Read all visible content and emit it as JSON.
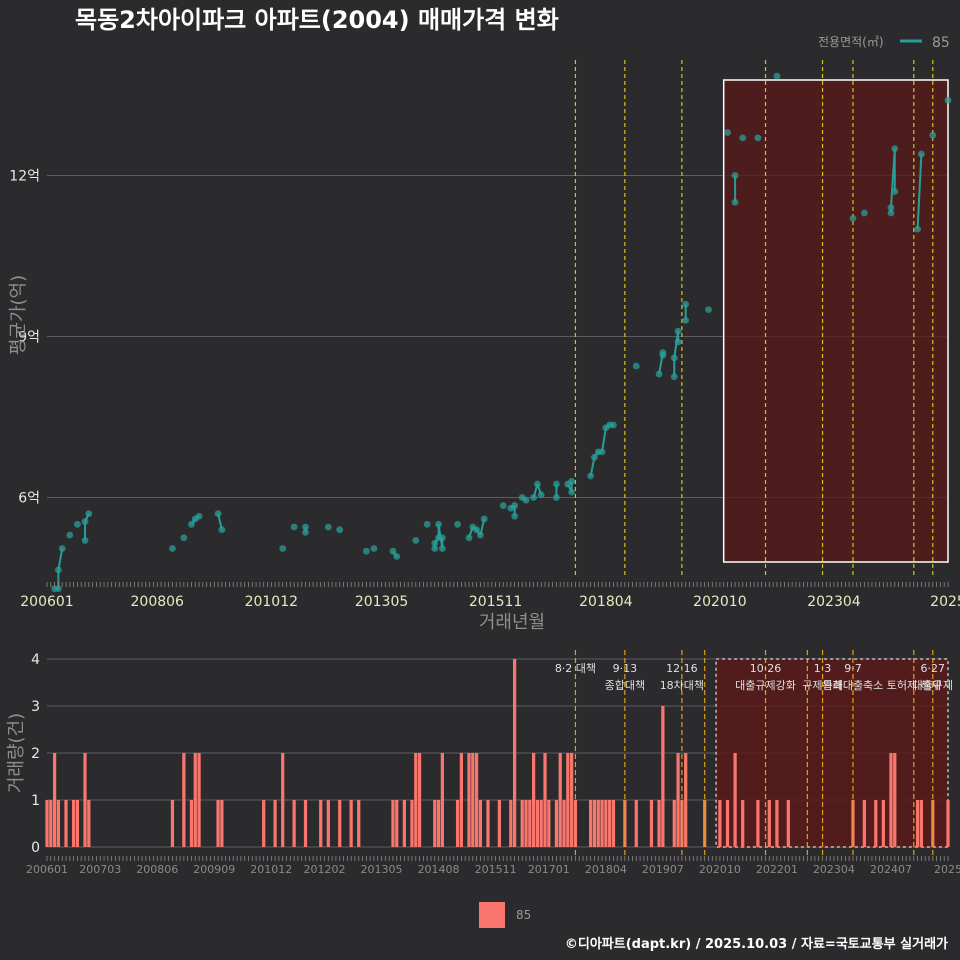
{
  "title": "목동2차아이파크 아파트(2004) 매매가격 변화",
  "caption": "©디아파트(dapt.kr) / 2025.10.03 / 자료=국토교통부 실거래가",
  "colors": {
    "line": "#2a9d98",
    "bar": "#f8766d",
    "vline": "#d4c415",
    "highlight": "#5a1a1a"
  },
  "chart_data": [
    {
      "type": "line",
      "title": "목동2차아이파크 아파트(2004) 매매가격 변화",
      "xlabel": "거래년월",
      "ylabel": "평균가(억)",
      "x_tick_labels": [
        "200601",
        "200806",
        "201012",
        "201305",
        "201511",
        "201804",
        "202010",
        "202304",
        "2025"
      ],
      "y_tick_labels": [
        "6억",
        "9억",
        "12억"
      ],
      "y_ticks": [
        6,
        9,
        12
      ],
      "ylim": [
        4.5,
        14.3
      ],
      "x_range": [
        "2006-01",
        "2025-10"
      ],
      "legend": {
        "title": "전용면적(㎡)",
        "entries": [
          "85"
        ],
        "position": "top-right"
      },
      "highlight_region": {
        "x_start": "2020-11",
        "x_end": "2025-10"
      },
      "vertical_lines": [
        "2017-08",
        "2018-09",
        "2019-12",
        "2021-10",
        "2023-01",
        "2023-09",
        "2025-01",
        "2025-06"
      ],
      "series": [
        {
          "name": "85",
          "points": [
            [
              "2006-03",
              4.3
            ],
            [
              "2006-04",
              4.3
            ],
            [
              "2006-04",
              4.65
            ],
            [
              "2006-05",
              5.05
            ],
            [
              "2006-07",
              5.3
            ],
            [
              "2006-09",
              5.5
            ],
            [
              "2006-11",
              5.2
            ],
            [
              "2006-11",
              5.55
            ],
            [
              "2006-12",
              5.7
            ],
            [
              "2008-10",
              5.05
            ],
            [
              "2009-01",
              5.25
            ],
            [
              "2009-03",
              5.5
            ],
            [
              "2009-04",
              5.6
            ],
            [
              "2009-05",
              5.65
            ],
            [
              "2009-10",
              5.7
            ],
            [
              "2009-11",
              5.4
            ],
            [
              "2011-03",
              5.05
            ],
            [
              "2011-06",
              5.45
            ],
            [
              "2011-09",
              5.45
            ],
            [
              "2011-09",
              5.35
            ],
            [
              "2012-03",
              5.45
            ],
            [
              "2012-06",
              5.4
            ],
            [
              "2013-01",
              5.0
            ],
            [
              "2013-03",
              5.05
            ],
            [
              "2013-08",
              5.0
            ],
            [
              "2013-09",
              4.9
            ],
            [
              "2014-02",
              5.2
            ],
            [
              "2014-05",
              5.5
            ],
            [
              "2014-07",
              5.05
            ],
            [
              "2014-07",
              5.15
            ],
            [
              "2014-08",
              5.25
            ],
            [
              "2014-08",
              5.5
            ],
            [
              "2014-09",
              5.05
            ],
            [
              "2014-09",
              5.25
            ],
            [
              "2015-01",
              5.5
            ],
            [
              "2015-04",
              5.25
            ],
            [
              "2015-05",
              5.45
            ],
            [
              "2015-06",
              5.4
            ],
            [
              "2015-07",
              5.3
            ],
            [
              "2015-08",
              5.6
            ],
            [
              "2016-01",
              5.85
            ],
            [
              "2016-03",
              5.8
            ],
            [
              "2016-04",
              5.85
            ],
            [
              "2016-04",
              5.65
            ],
            [
              "2016-06",
              6.0
            ],
            [
              "2016-07",
              5.95
            ],
            [
              "2016-09",
              6.0
            ],
            [
              "2016-10",
              6.25
            ],
            [
              "2016-11",
              6.05
            ],
            [
              "2017-03",
              6.25
            ],
            [
              "2017-03",
              6.0
            ],
            [
              "2017-06",
              6.25
            ],
            [
              "2017-07",
              6.1
            ],
            [
              "2017-07",
              6.3
            ],
            [
              "2017-12",
              6.4
            ],
            [
              "2018-01",
              6.75
            ],
            [
              "2018-02",
              6.85
            ],
            [
              "2018-03",
              6.85
            ],
            [
              "2018-04",
              7.3
            ],
            [
              "2018-05",
              7.35
            ],
            [
              "2018-06",
              7.35
            ],
            [
              "2018-12",
              8.45
            ],
            [
              "2019-06",
              8.3
            ],
            [
              "2019-07",
              8.7
            ],
            [
              "2019-07",
              8.65
            ],
            [
              "2019-10",
              8.25
            ],
            [
              "2019-10",
              8.6
            ],
            [
              "2019-11",
              9.1
            ],
            [
              "2019-11",
              8.9
            ],
            [
              "2020-01",
              9.6
            ],
            [
              "2020-01",
              9.3
            ],
            [
              "2020-07",
              9.5
            ],
            [
              "2020-12",
              12.8
            ],
            [
              "2021-02",
              12.0
            ],
            [
              "2021-02",
              11.5
            ],
            [
              "2021-04",
              12.7
            ],
            [
              "2021-08",
              12.7
            ],
            [
              "2022-01",
              13.85
            ],
            [
              "2023-09",
              11.2
            ],
            [
              "2023-12",
              11.3
            ],
            [
              "2024-07",
              11.3
            ],
            [
              "2024-07",
              11.4
            ],
            [
              "2024-08",
              12.5
            ],
            [
              "2024-08",
              11.7
            ],
            [
              "2025-02",
              11.0
            ],
            [
              "2025-03",
              12.4
            ],
            [
              "2025-06",
              12.75
            ],
            [
              "2025-10",
              13.4
            ]
          ]
        }
      ]
    },
    {
      "type": "bar",
      "xlabel": "",
      "ylabel": "거래량(건)",
      "x_tick_labels": [
        "200601",
        "200703",
        "200806",
        "200909",
        "201012",
        "201202",
        "201305",
        "201408",
        "201511",
        "201701",
        "201804",
        "201907",
        "202010",
        "202201",
        "202304",
        "202407",
        "2025"
      ],
      "y_tick_labels": [
        "0",
        "1",
        "2",
        "3",
        "4"
      ],
      "ylim": [
        0,
        4
      ],
      "legend": {
        "entries": [
          "85"
        ],
        "position": "bottom"
      },
      "highlight_region": {
        "x_start": "2020-09",
        "x_end": "2025-10"
      },
      "vertical_lines": [
        "2017-08",
        "2018-09",
        "2019-12",
        "2020-06",
        "2021-10",
        "2022-09",
        "2023-01",
        "2023-09",
        "2025-01",
        "2025-06"
      ],
      "annotations": [
        {
          "x": "2017-08",
          "lines": [
            "8·2 대책"
          ]
        },
        {
          "x": "2018-09",
          "lines": [
            "9·13",
            "종합대책"
          ]
        },
        {
          "x": "2019-12",
          "lines": [
            "12·16",
            "18차대책"
          ]
        },
        {
          "x": "2021-10",
          "lines": [
            "10·26",
            "대출규제강화"
          ]
        },
        {
          "x": "2023-01",
          "lines": [
            "1·3",
            "규제완화"
          ]
        },
        {
          "x": "2023-09",
          "lines": [
            "9·7",
            "특례대출축소"
          ]
        },
        {
          "x": "2025-01",
          "lines": [
            "",
            "토허제 해제"
          ]
        },
        {
          "x": "2025-06",
          "lines": [
            "6·27",
            "대출규제"
          ]
        }
      ],
      "series": [
        {
          "name": "85",
          "bars": [
            [
              "2006-01",
              1
            ],
            [
              "2006-02",
              1
            ],
            [
              "2006-03",
              2
            ],
            [
              "2006-04",
              1
            ],
            [
              "2006-06",
              1
            ],
            [
              "2006-08",
              1
            ],
            [
              "2006-09",
              1
            ],
            [
              "2006-11",
              2
            ],
            [
              "2006-12",
              1
            ],
            [
              "2008-10",
              1
            ],
            [
              "2009-01",
              2
            ],
            [
              "2009-03",
              1
            ],
            [
              "2009-04",
              2
            ],
            [
              "2009-05",
              2
            ],
            [
              "2009-10",
              1
            ],
            [
              "2009-11",
              1
            ],
            [
              "2010-10",
              1
            ],
            [
              "2011-01",
              1
            ],
            [
              "2011-03",
              2
            ],
            [
              "2011-06",
              1
            ],
            [
              "2011-09",
              1
            ],
            [
              "2012-01",
              1
            ],
            [
              "2012-03",
              1
            ],
            [
              "2012-06",
              1
            ],
            [
              "2012-09",
              1
            ],
            [
              "2012-11",
              1
            ],
            [
              "2013-08",
              1
            ],
            [
              "2013-09",
              1
            ],
            [
              "2013-11",
              1
            ],
            [
              "2014-01",
              1
            ],
            [
              "2014-02",
              2
            ],
            [
              "2014-03",
              2
            ],
            [
              "2014-07",
              1
            ],
            [
              "2014-08",
              1
            ],
            [
              "2014-09",
              2
            ],
            [
              "2015-01",
              1
            ],
            [
              "2015-02",
              2
            ],
            [
              "2015-04",
              2
            ],
            [
              "2015-05",
              2
            ],
            [
              "2015-06",
              2
            ],
            [
              "2015-07",
              1
            ],
            [
              "2015-09",
              1
            ],
            [
              "2015-12",
              1
            ],
            [
              "2016-03",
              1
            ],
            [
              "2016-04",
              4
            ],
            [
              "2016-06",
              1
            ],
            [
              "2016-07",
              1
            ],
            [
              "2016-08",
              1
            ],
            [
              "2016-09",
              2
            ],
            [
              "2016-10",
              1
            ],
            [
              "2016-11",
              1
            ],
            [
              "2016-12",
              2
            ],
            [
              "2017-01",
              1
            ],
            [
              "2017-03",
              1
            ],
            [
              "2017-04",
              2
            ],
            [
              "2017-05",
              1
            ],
            [
              "2017-06",
              2
            ],
            [
              "2017-07",
              2
            ],
            [
              "2017-08",
              1
            ],
            [
              "2017-12",
              1
            ],
            [
              "2018-01",
              1
            ],
            [
              "2018-02",
              1
            ],
            [
              "2018-03",
              1
            ],
            [
              "2018-04",
              1
            ],
            [
              "2018-05",
              1
            ],
            [
              "2018-06",
              1
            ],
            [
              "2018-09",
              1
            ],
            [
              "2018-12",
              1
            ],
            [
              "2019-04",
              1
            ],
            [
              "2019-06",
              1
            ],
            [
              "2019-07",
              3
            ],
            [
              "2019-10",
              1
            ],
            [
              "2019-11",
              2
            ],
            [
              "2019-12",
              1
            ],
            [
              "2020-01",
              2
            ],
            [
              "2020-06",
              1
            ],
            [
              "2020-10",
              1
            ],
            [
              "2020-12",
              1
            ],
            [
              "2021-02",
              2
            ],
            [
              "2021-04",
              1
            ],
            [
              "2021-08",
              1
            ],
            [
              "2021-11",
              1
            ],
            [
              "2022-01",
              1
            ],
            [
              "2022-04",
              1
            ],
            [
              "2023-09",
              1
            ],
            [
              "2023-12",
              1
            ],
            [
              "2024-03",
              1
            ],
            [
              "2024-05",
              1
            ],
            [
              "2024-07",
              2
            ],
            [
              "2024-08",
              2
            ],
            [
              "2025-02",
              1
            ],
            [
              "2025-03",
              1
            ],
            [
              "2025-06",
              1
            ],
            [
              "2025-10",
              1
            ]
          ]
        }
      ]
    }
  ]
}
